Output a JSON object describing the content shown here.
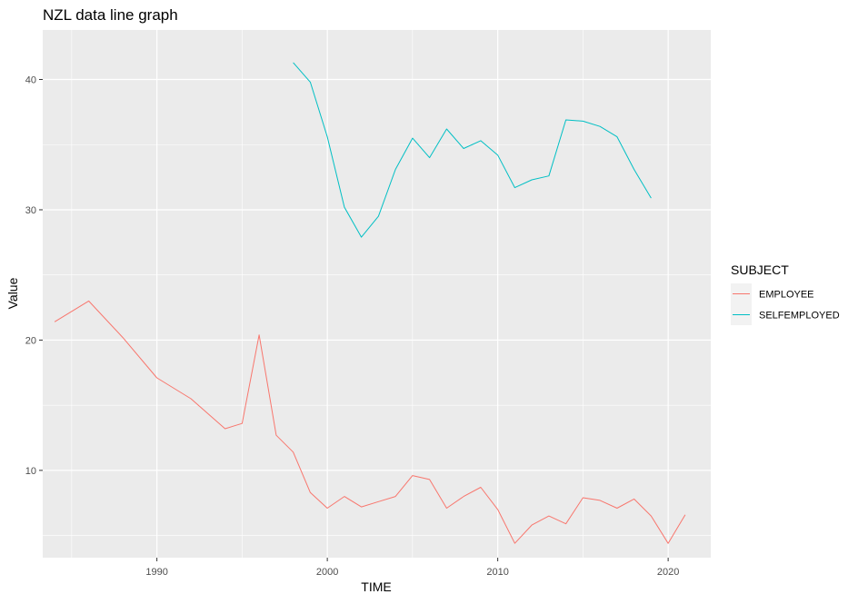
{
  "chart_data": {
    "type": "line",
    "title": "NZL data line graph",
    "xlabel": "TIME",
    "ylabel": "Value",
    "xlim": [
      1983.3,
      2022.5
    ],
    "ylim": [
      3.3,
      43.8
    ],
    "x_major_ticks": [
      1990,
      2000,
      2010,
      2020
    ],
    "x_minor_ticks": [
      1985,
      1995,
      2005,
      2015
    ],
    "y_major_ticks": [
      10,
      20,
      30,
      40
    ],
    "y_minor_ticks": [
      5,
      15,
      25,
      35
    ],
    "grid": true,
    "legend": {
      "title": "SUBJECT",
      "position": "right"
    },
    "series": [
      {
        "name": "EMPLOYEE",
        "color": "#F8766D",
        "points": [
          [
            1984,
            21.4
          ],
          [
            1986,
            23.0
          ],
          [
            1988,
            20.2
          ],
          [
            1990,
            17.1
          ],
          [
            1992,
            15.5
          ],
          [
            1994,
            13.2
          ],
          [
            1995,
            13.6
          ],
          [
            1996,
            20.4
          ],
          [
            1997,
            12.7
          ],
          [
            1998,
            11.4
          ],
          [
            1999,
            8.3
          ],
          [
            2000,
            7.1
          ],
          [
            2001,
            8.0
          ],
          [
            2002,
            7.2
          ],
          [
            2003,
            7.6
          ],
          [
            2004,
            8.0
          ],
          [
            2005,
            9.6
          ],
          [
            2006,
            9.3
          ],
          [
            2007,
            7.1
          ],
          [
            2008,
            8.0
          ],
          [
            2009,
            8.7
          ],
          [
            2010,
            7.0
          ],
          [
            2011,
            4.4
          ],
          [
            2012,
            5.8
          ],
          [
            2013,
            6.5
          ],
          [
            2014,
            5.9
          ],
          [
            2015,
            7.9
          ],
          [
            2016,
            7.7
          ],
          [
            2017,
            7.1
          ],
          [
            2018,
            7.8
          ],
          [
            2019,
            6.5
          ],
          [
            2020,
            4.4
          ],
          [
            2021,
            6.6
          ]
        ]
      },
      {
        "name": "SELFEMPLOYED",
        "color": "#00BFC4",
        "points": [
          [
            1998,
            41.3
          ],
          [
            1999,
            39.8
          ],
          [
            2000,
            35.6
          ],
          [
            2001,
            30.2
          ],
          [
            2002,
            27.9
          ],
          [
            2003,
            29.5
          ],
          [
            2004,
            33.1
          ],
          [
            2005,
            35.5
          ],
          [
            2006,
            34.0
          ],
          [
            2007,
            36.2
          ],
          [
            2008,
            34.7
          ],
          [
            2009,
            35.3
          ],
          [
            2010,
            34.2
          ],
          [
            2011,
            31.7
          ],
          [
            2012,
            32.3
          ],
          [
            2013,
            32.6
          ],
          [
            2014,
            36.9
          ],
          [
            2015,
            36.8
          ],
          [
            2016,
            36.4
          ],
          [
            2017,
            35.6
          ],
          [
            2018,
            33.1
          ],
          [
            2019,
            30.9
          ]
        ]
      }
    ]
  }
}
